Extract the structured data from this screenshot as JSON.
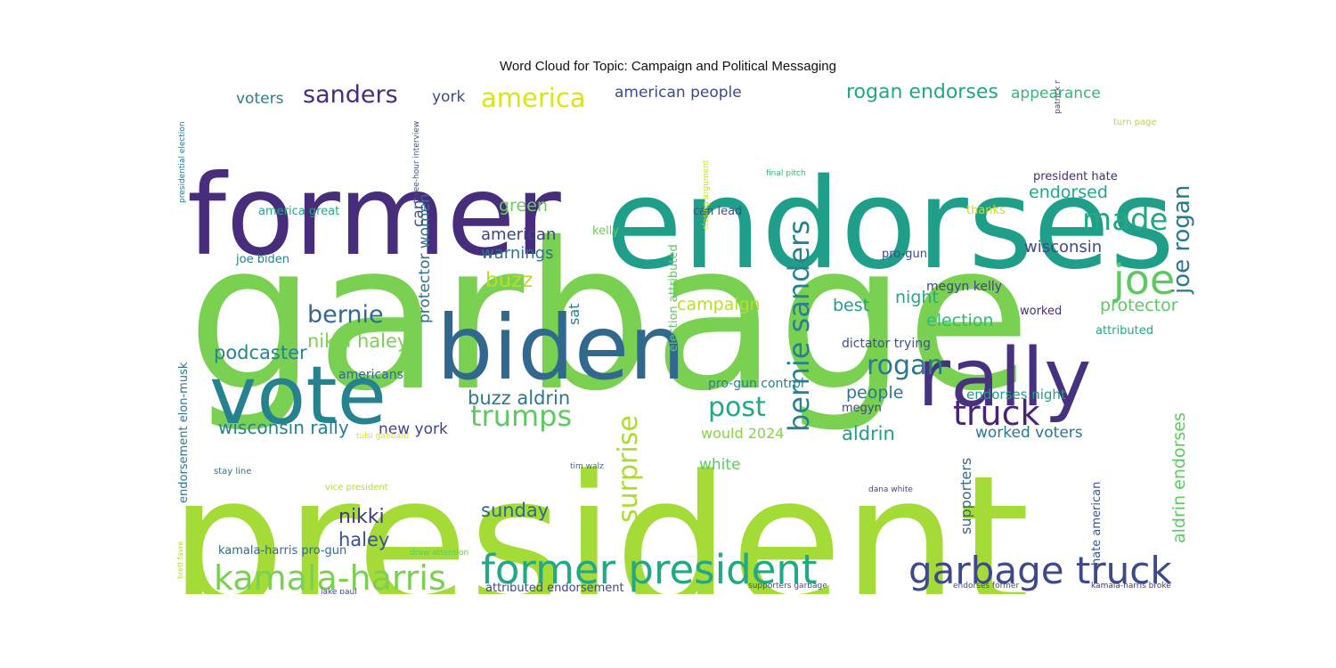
{
  "chart_data": {
    "type": "wordcloud",
    "title": "Word Cloud for Topic: Campaign and Political Messaging",
    "colormap": "viridis",
    "background": "#ffffff",
    "words": [
      {
        "text": "garbage",
        "weight": 100,
        "color": "#7ad151"
      },
      {
        "text": "president",
        "weight": 88,
        "color": "#a5db36"
      },
      {
        "text": "endorses",
        "weight": 62,
        "color": "#1f9e89"
      },
      {
        "text": "former",
        "weight": 58,
        "color": "#472d7b"
      },
      {
        "text": "biden",
        "weight": 50,
        "color": "#31688e"
      },
      {
        "text": "vote",
        "weight": 46,
        "color": "#26828e"
      },
      {
        "text": "rally",
        "weight": 44,
        "color": "#46327e"
      },
      {
        "text": "former president",
        "weight": 24,
        "color": "#22a884"
      },
      {
        "text": "garbage truck",
        "weight": 24,
        "color": "#3e4989"
      },
      {
        "text": "kamala-harris",
        "weight": 21,
        "color": "#7ad151"
      },
      {
        "text": "joe",
        "weight": 24,
        "color": "#5ec962"
      },
      {
        "text": "made",
        "weight": 19,
        "color": "#22a884"
      },
      {
        "text": "truck",
        "weight": 22,
        "color": "#482475"
      },
      {
        "text": "bernie sanders",
        "weight": 18,
        "color": "#26828e"
      },
      {
        "text": "trumps",
        "weight": 17,
        "color": "#5ec962"
      },
      {
        "text": "surprise",
        "weight": 17,
        "color": "#addc30"
      },
      {
        "text": "rogan",
        "weight": 17,
        "color": "#2a788e"
      },
      {
        "text": "joe rogan",
        "weight": 16,
        "color": "#2a788e"
      },
      {
        "text": "post",
        "weight": 16,
        "color": "#22a884"
      },
      {
        "text": "bernie",
        "weight": 15,
        "color": "#31688e"
      },
      {
        "text": "sanders",
        "weight": 15,
        "color": "#472d7b"
      },
      {
        "text": "america",
        "weight": 15,
        "color": "#dde318"
      },
      {
        "text": "rogan endorses",
        "weight": 12,
        "color": "#22a884"
      },
      {
        "text": "podcaster",
        "weight": 12,
        "color": "#25848e"
      },
      {
        "text": "nikki haley",
        "weight": 12,
        "color": "#7ad151"
      },
      {
        "text": "aldrin endorses",
        "weight": 11,
        "color": "#5ec962"
      },
      {
        "text": "wisconsin rally",
        "weight": 11,
        "color": "#26828e"
      },
      {
        "text": "buzz aldrin",
        "weight": 11,
        "color": "#2a788e"
      },
      {
        "text": "sunday",
        "weight": 12,
        "color": "#31688e"
      },
      {
        "text": "nikki",
        "weight": 13,
        "color": "#453781"
      },
      {
        "text": "haley",
        "weight": 12,
        "color": "#3b528b"
      },
      {
        "text": "buzz",
        "weight": 13,
        "color": "#b5de2b"
      },
      {
        "text": "aldrin",
        "weight": 13,
        "color": "#1f9e89"
      },
      {
        "text": "protector women",
        "weight": 10,
        "color": "#2c728e"
      },
      {
        "text": "american people",
        "weight": 10,
        "color": "#3e4a89"
      },
      {
        "text": "appearance",
        "weight": 10,
        "color": "#35b779"
      },
      {
        "text": "voters",
        "weight": 10,
        "color": "#26828e"
      },
      {
        "text": "york",
        "weight": 10,
        "color": "#3e4989"
      },
      {
        "text": "endorsed",
        "weight": 10,
        "color": "#22a884"
      },
      {
        "text": "green",
        "weight": 10,
        "color": "#6ccd5a"
      },
      {
        "text": "american",
        "weight": 10,
        "color": "#404387"
      },
      {
        "text": "warnings",
        "weight": 10,
        "color": "#2c728e"
      },
      {
        "text": "campaign",
        "weight": 10,
        "color": "#b8de29"
      },
      {
        "text": "wisconsin",
        "weight": 10,
        "color": "#3e4a89"
      },
      {
        "text": "night",
        "weight": 10,
        "color": "#22a884"
      },
      {
        "text": "election",
        "weight": 10,
        "color": "#35b779"
      },
      {
        "text": "best",
        "weight": 10,
        "color": "#1f9e89"
      },
      {
        "text": "protector",
        "weight": 10,
        "color": "#5ec962"
      },
      {
        "text": "people",
        "weight": 10,
        "color": "#2a788e"
      },
      {
        "text": "white",
        "weight": 9,
        "color": "#5ec962"
      },
      {
        "text": "can",
        "weight": 9,
        "color": "#3b528b"
      },
      {
        "text": "sat",
        "weight": 9,
        "color": "#25848e"
      },
      {
        "text": "supporters",
        "weight": 9,
        "color": "#31688e"
      },
      {
        "text": "new york",
        "weight": 9,
        "color": "#414487"
      },
      {
        "text": "would 2024",
        "weight": 9,
        "color": "#86d549"
      },
      {
        "text": "worked voters",
        "weight": 9,
        "color": "#2a788e"
      },
      {
        "text": "endorses night",
        "weight": 8,
        "color": "#1f9e89"
      },
      {
        "text": "hate american",
        "weight": 8,
        "color": "#39568c"
      },
      {
        "text": "megyn kelly",
        "weight": 8,
        "color": "#414487"
      },
      {
        "text": "dictator trying",
        "weight": 8,
        "color": "#3b528b"
      },
      {
        "text": "pro-gun control",
        "weight": 8,
        "color": "#26828e"
      },
      {
        "text": "kamala-harris pro-gun",
        "weight": 7,
        "color": "#31688e"
      },
      {
        "text": "attributed endorsement",
        "weight": 7,
        "color": "#3e4989"
      },
      {
        "text": "election attributed",
        "weight": 7,
        "color": "#5ec962"
      },
      {
        "text": "president hate",
        "weight": 7,
        "color": "#472d7b"
      },
      {
        "text": "americans",
        "weight": 7,
        "color": "#31688e"
      },
      {
        "text": "endorsement elon-musk",
        "weight": 7,
        "color": "#2a788e"
      },
      {
        "text": "america great",
        "weight": 7,
        "color": "#22a884"
      },
      {
        "text": "joe biden",
        "weight": 7,
        "color": "#26828e"
      },
      {
        "text": "can lead",
        "weight": 7,
        "color": "#3b528b"
      },
      {
        "text": "thanks",
        "weight": 7,
        "color": "#c2df23"
      },
      {
        "text": "kelly",
        "weight": 7,
        "color": "#6ccd5a"
      },
      {
        "text": "pro-gun",
        "weight": 7,
        "color": "#3e4989"
      },
      {
        "text": "attributed",
        "weight": 7,
        "color": "#22a884"
      },
      {
        "text": "megyn",
        "weight": 7,
        "color": "#404387"
      },
      {
        "text": "worked",
        "weight": 7,
        "color": "#472d7b"
      },
      {
        "text": "patrick mahomes",
        "weight": 5,
        "color": "#3e4989"
      },
      {
        "text": "presidential election",
        "weight": 5,
        "color": "#2a788e"
      },
      {
        "text": "three-hour interview",
        "weight": 5,
        "color": "#3b528b"
      },
      {
        "text": "closing argument",
        "weight": 5,
        "color": "#c2df23"
      },
      {
        "text": "final pitch",
        "weight": 5,
        "color": "#35b779"
      },
      {
        "text": "turn page",
        "weight": 5,
        "color": "#b8de29"
      },
      {
        "text": "jake paul",
        "weight": 5,
        "color": "#414487"
      },
      {
        "text": "vice president",
        "weight": 5,
        "color": "#b5de2b"
      },
      {
        "text": "tim walz",
        "weight": 5,
        "color": "#2c728e"
      },
      {
        "text": "tulsi gabbard",
        "weight": 5,
        "color": "#dde318"
      },
      {
        "text": "dana white",
        "weight": 5,
        "color": "#3e4989"
      },
      {
        "text": "supporters garbage",
        "weight": 5,
        "color": "#3e4989"
      },
      {
        "text": "endorses former",
        "weight": 5,
        "color": "#3e4989"
      },
      {
        "text": "kamala-harris broke",
        "weight": 5,
        "color": "#46327e"
      },
      {
        "text": "draw attention",
        "weight": 5,
        "color": "#5ec962"
      },
      {
        "text": "stay line",
        "weight": 5,
        "color": "#2a788e"
      },
      {
        "text": "brett favre",
        "weight": 5,
        "color": "#b5de2b"
      }
    ]
  }
}
